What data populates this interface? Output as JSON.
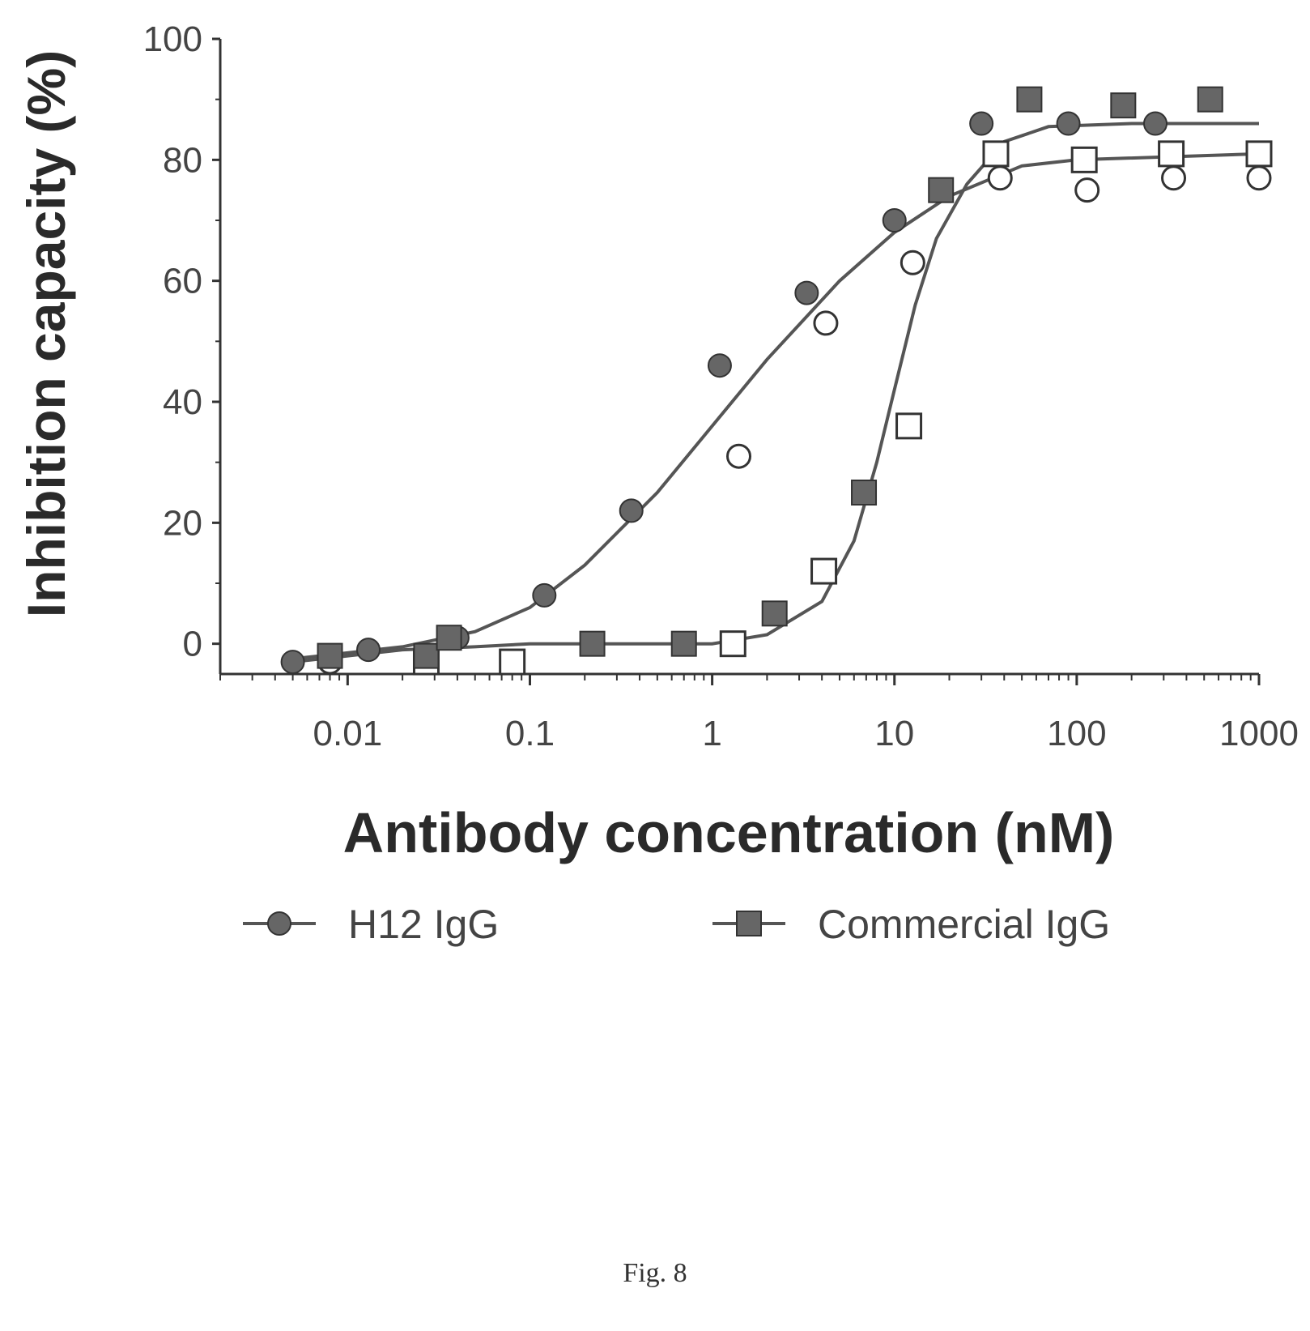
{
  "chart_data": {
    "type": "scatter",
    "xlabel": "Antibody concentration (nM)",
    "ylabel": "Inhibition capacity (%)",
    "x_scale": "log",
    "xlim": [
      0.002,
      1000
    ],
    "ylim": [
      -5,
      100
    ],
    "x_ticks": [
      0.01,
      0.1,
      1,
      10,
      100,
      1000
    ],
    "x_tick_labels": [
      "0.01",
      "0.1",
      "1",
      "10",
      "100",
      "1000"
    ],
    "y_ticks": [
      0,
      20,
      40,
      60,
      80,
      100
    ],
    "y_tick_labels": [
      "0",
      "20",
      "40",
      "60",
      "80",
      "100"
    ],
    "grid": false,
    "legend_position": "bottom",
    "series": [
      {
        "name": "H12 IgG",
        "marker": "circle",
        "line_color": "#555555",
        "points": [
          {
            "x": 0.005,
            "y": -3
          },
          {
            "x": 0.008,
            "y": -2
          },
          {
            "x": 0.013,
            "y": -1
          },
          {
            "x": 0.04,
            "y": 1
          },
          {
            "x": 0.12,
            "y": 8
          },
          {
            "x": 0.36,
            "y": 22
          },
          {
            "x": 1.1,
            "y": 46
          },
          {
            "x": 3.3,
            "y": 58
          },
          {
            "x": 10,
            "y": 70
          },
          {
            "x": 30,
            "y": 86
          },
          {
            "x": 90,
            "y": 86
          },
          {
            "x": 270,
            "y": 86
          }
        ],
        "open_points": [
          {
            "x": 0.008,
            "y": -3
          },
          {
            "x": 1.4,
            "y": 31
          },
          {
            "x": 4.2,
            "y": 53
          },
          {
            "x": 12.6,
            "y": 63
          },
          {
            "x": 38,
            "y": 77
          },
          {
            "x": 114,
            "y": 75
          },
          {
            "x": 340,
            "y": 77
          },
          {
            "x": 1000,
            "y": 77
          }
        ],
        "curve": [
          {
            "x": 0.005,
            "y": -2.5
          },
          {
            "x": 0.01,
            "y": -1.5
          },
          {
            "x": 0.02,
            "y": -0.5
          },
          {
            "x": 0.05,
            "y": 2
          },
          {
            "x": 0.1,
            "y": 6
          },
          {
            "x": 0.2,
            "y": 13
          },
          {
            "x": 0.5,
            "y": 25
          },
          {
            "x": 1,
            "y": 36
          },
          {
            "x": 2,
            "y": 47
          },
          {
            "x": 5,
            "y": 60
          },
          {
            "x": 10,
            "y": 68
          },
          {
            "x": 20,
            "y": 74
          },
          {
            "x": 50,
            "y": 79
          },
          {
            "x": 100,
            "y": 80
          },
          {
            "x": 1000,
            "y": 81
          }
        ]
      },
      {
        "name": "Commercial IgG",
        "marker": "square",
        "line_color": "#555555",
        "points": [
          {
            "x": 0.008,
            "y": -2
          },
          {
            "x": 0.027,
            "y": -2
          },
          {
            "x": 0.036,
            "y": 1
          },
          {
            "x": 0.22,
            "y": 0
          },
          {
            "x": 0.7,
            "y": 0
          },
          {
            "x": 2.2,
            "y": 5
          },
          {
            "x": 6.8,
            "y": 25
          },
          {
            "x": 18,
            "y": 75
          },
          {
            "x": 55,
            "y": 90
          },
          {
            "x": 180,
            "y": 89
          },
          {
            "x": 540,
            "y": 90
          }
        ],
        "open_points": [
          {
            "x": 0.027,
            "y": -3
          },
          {
            "x": 0.08,
            "y": -3
          },
          {
            "x": 1.3,
            "y": 0
          },
          {
            "x": 4.1,
            "y": 12
          },
          {
            "x": 12,
            "y": 36
          },
          {
            "x": 36,
            "y": 81
          },
          {
            "x": 110,
            "y": 80
          },
          {
            "x": 330,
            "y": 81
          },
          {
            "x": 1000,
            "y": 81
          }
        ],
        "curve": [
          {
            "x": 0.005,
            "y": -3
          },
          {
            "x": 0.01,
            "y": -2
          },
          {
            "x": 0.02,
            "y": -1
          },
          {
            "x": 0.05,
            "y": -0.5
          },
          {
            "x": 0.1,
            "y": 0
          },
          {
            "x": 0.5,
            "y": 0
          },
          {
            "x": 1,
            "y": 0
          },
          {
            "x": 2,
            "y": 1.5
          },
          {
            "x": 4,
            "y": 7
          },
          {
            "x": 6,
            "y": 17
          },
          {
            "x": 8,
            "y": 30
          },
          {
            "x": 10,
            "y": 42
          },
          {
            "x": 13,
            "y": 56
          },
          {
            "x": 17,
            "y": 67
          },
          {
            "x": 25,
            "y": 76
          },
          {
            "x": 40,
            "y": 83
          },
          {
            "x": 70,
            "y": 85.5
          },
          {
            "x": 200,
            "y": 86
          },
          {
            "x": 1000,
            "y": 86
          }
        ]
      }
    ]
  },
  "legend": {
    "items": [
      {
        "label": "H12 IgG",
        "marker": "circle"
      },
      {
        "label": "Commercial IgG",
        "marker": "square"
      }
    ]
  },
  "caption": "Fig. 8",
  "colors": {
    "axis": "#333333",
    "marker_fill": "#666666",
    "marker_stroke": "#333333",
    "text": "#444444"
  }
}
